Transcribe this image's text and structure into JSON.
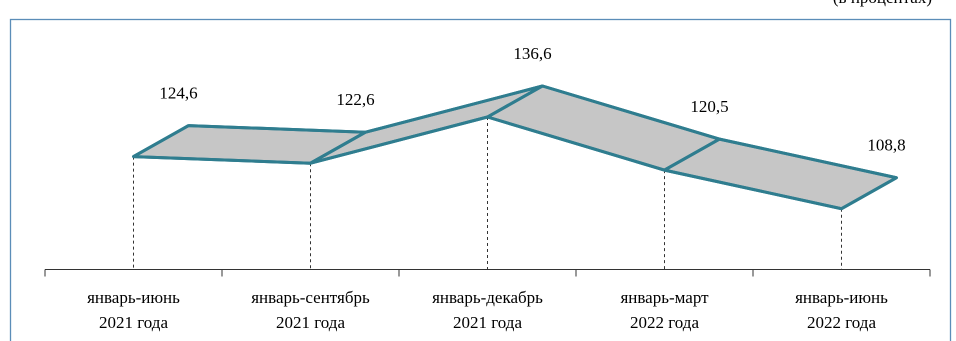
{
  "unit_text": "(в процентах)",
  "chart_data": {
    "type": "area",
    "categories": [
      [
        "январь-июнь",
        "2021 года"
      ],
      [
        "январь-сентябрь",
        "2021 года"
      ],
      [
        "январь-декабрь",
        "2021 года"
      ],
      [
        "январь-март",
        "2022 года"
      ],
      [
        "январь-июнь",
        "2022 года"
      ]
    ],
    "series": [
      {
        "values": [
          124.6,
          122.6,
          136.6,
          120.5,
          108.8
        ]
      }
    ],
    "value_labels": [
      "124,6",
      "122,6",
      "136,6",
      "120,5",
      "108,8"
    ],
    "grid": false,
    "three_d": true,
    "colors": {
      "fill": "#c6c6c6",
      "outline": "#2f7d8f",
      "frame": "#5b8db8"
    }
  }
}
